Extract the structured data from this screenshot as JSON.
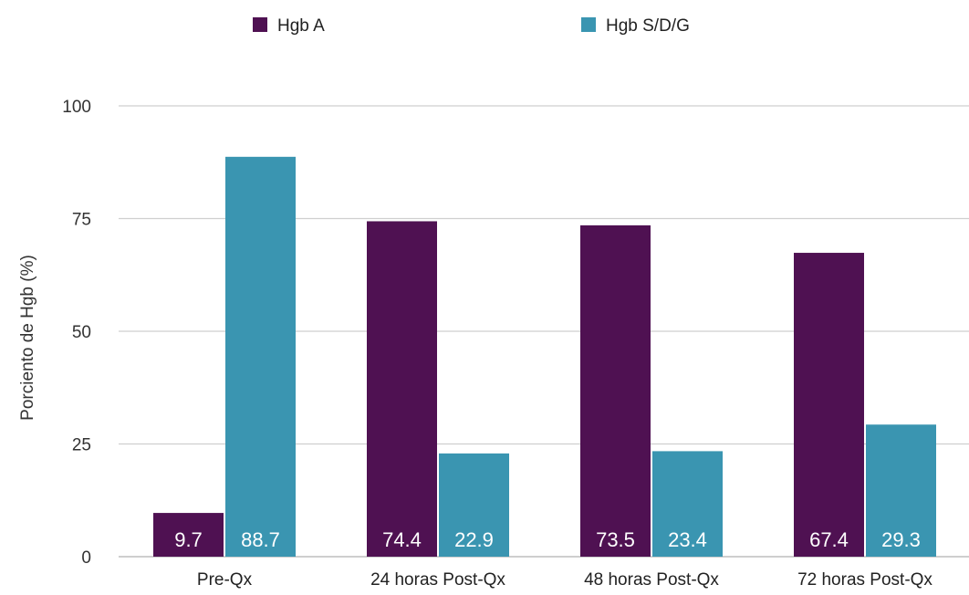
{
  "chart_data": {
    "type": "bar",
    "categories": [
      "Pre-Qx",
      "24 horas Post-Qx",
      "48 horas Post-Qx",
      "72 horas Post-Qx"
    ],
    "series": [
      {
        "name": "Hgb A",
        "values": [
          9.7,
          74.4,
          73.5,
          67.4
        ],
        "color": "#4f1152"
      },
      {
        "name": "Hgb S/D/G",
        "values": [
          88.7,
          22.9,
          23.4,
          29.3
        ],
        "color": "#3a95b1"
      }
    ],
    "data_labels": [
      [
        "9.7",
        "74.4",
        "73.5",
        "67.4"
      ],
      [
        "88.7",
        "22.9",
        "23.4",
        "29.3"
      ]
    ],
    "title": "",
    "xlabel": "",
    "ylabel": "Porciento de Hgb (%)",
    "ylim": [
      0,
      100
    ],
    "yticks": [
      "0",
      "25",
      "50",
      "75",
      "100"
    ],
    "grid": true,
    "legend_position": "top"
  }
}
